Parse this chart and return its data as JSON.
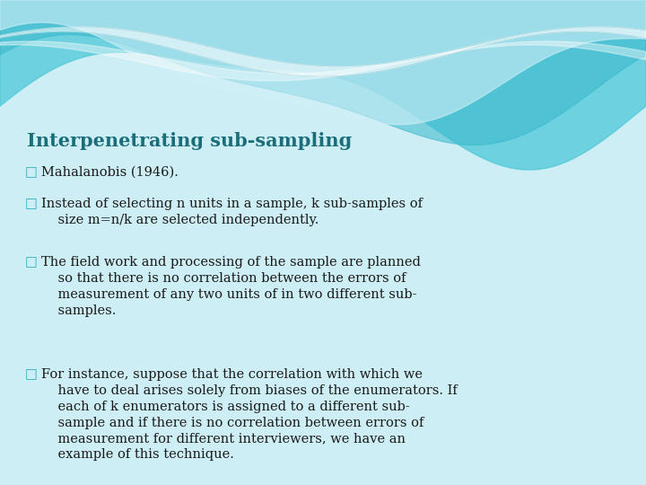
{
  "title": "Interpenetrating sub-sampling",
  "title_color": "#1a6e7a",
  "title_fontsize": 15,
  "bg_color": "#cdeef4",
  "bullet_color": "#2ab0c0",
  "bullets": [
    "Mahalanobis (1946).",
    "Instead of selecting n units in a sample, k sub-samples of\n    size m=n/k are selected independently.",
    "The field work and processing of the sample are planned\n    so that there is no correlation between the errors of\n    measurement of any two units of in two different sub-\n    samples.",
    "For instance, suppose that the correlation with which we\n    have to deal arises solely from biases of the enumerators. If\n    each of k enumerators is assigned to a different sub-\n    sample and if there is no correlation between errors of\n    measurement for different interviewers, we have an\n    example of this technique."
  ],
  "text_color": "#1a1a1a",
  "text_fontsize": 10.5
}
